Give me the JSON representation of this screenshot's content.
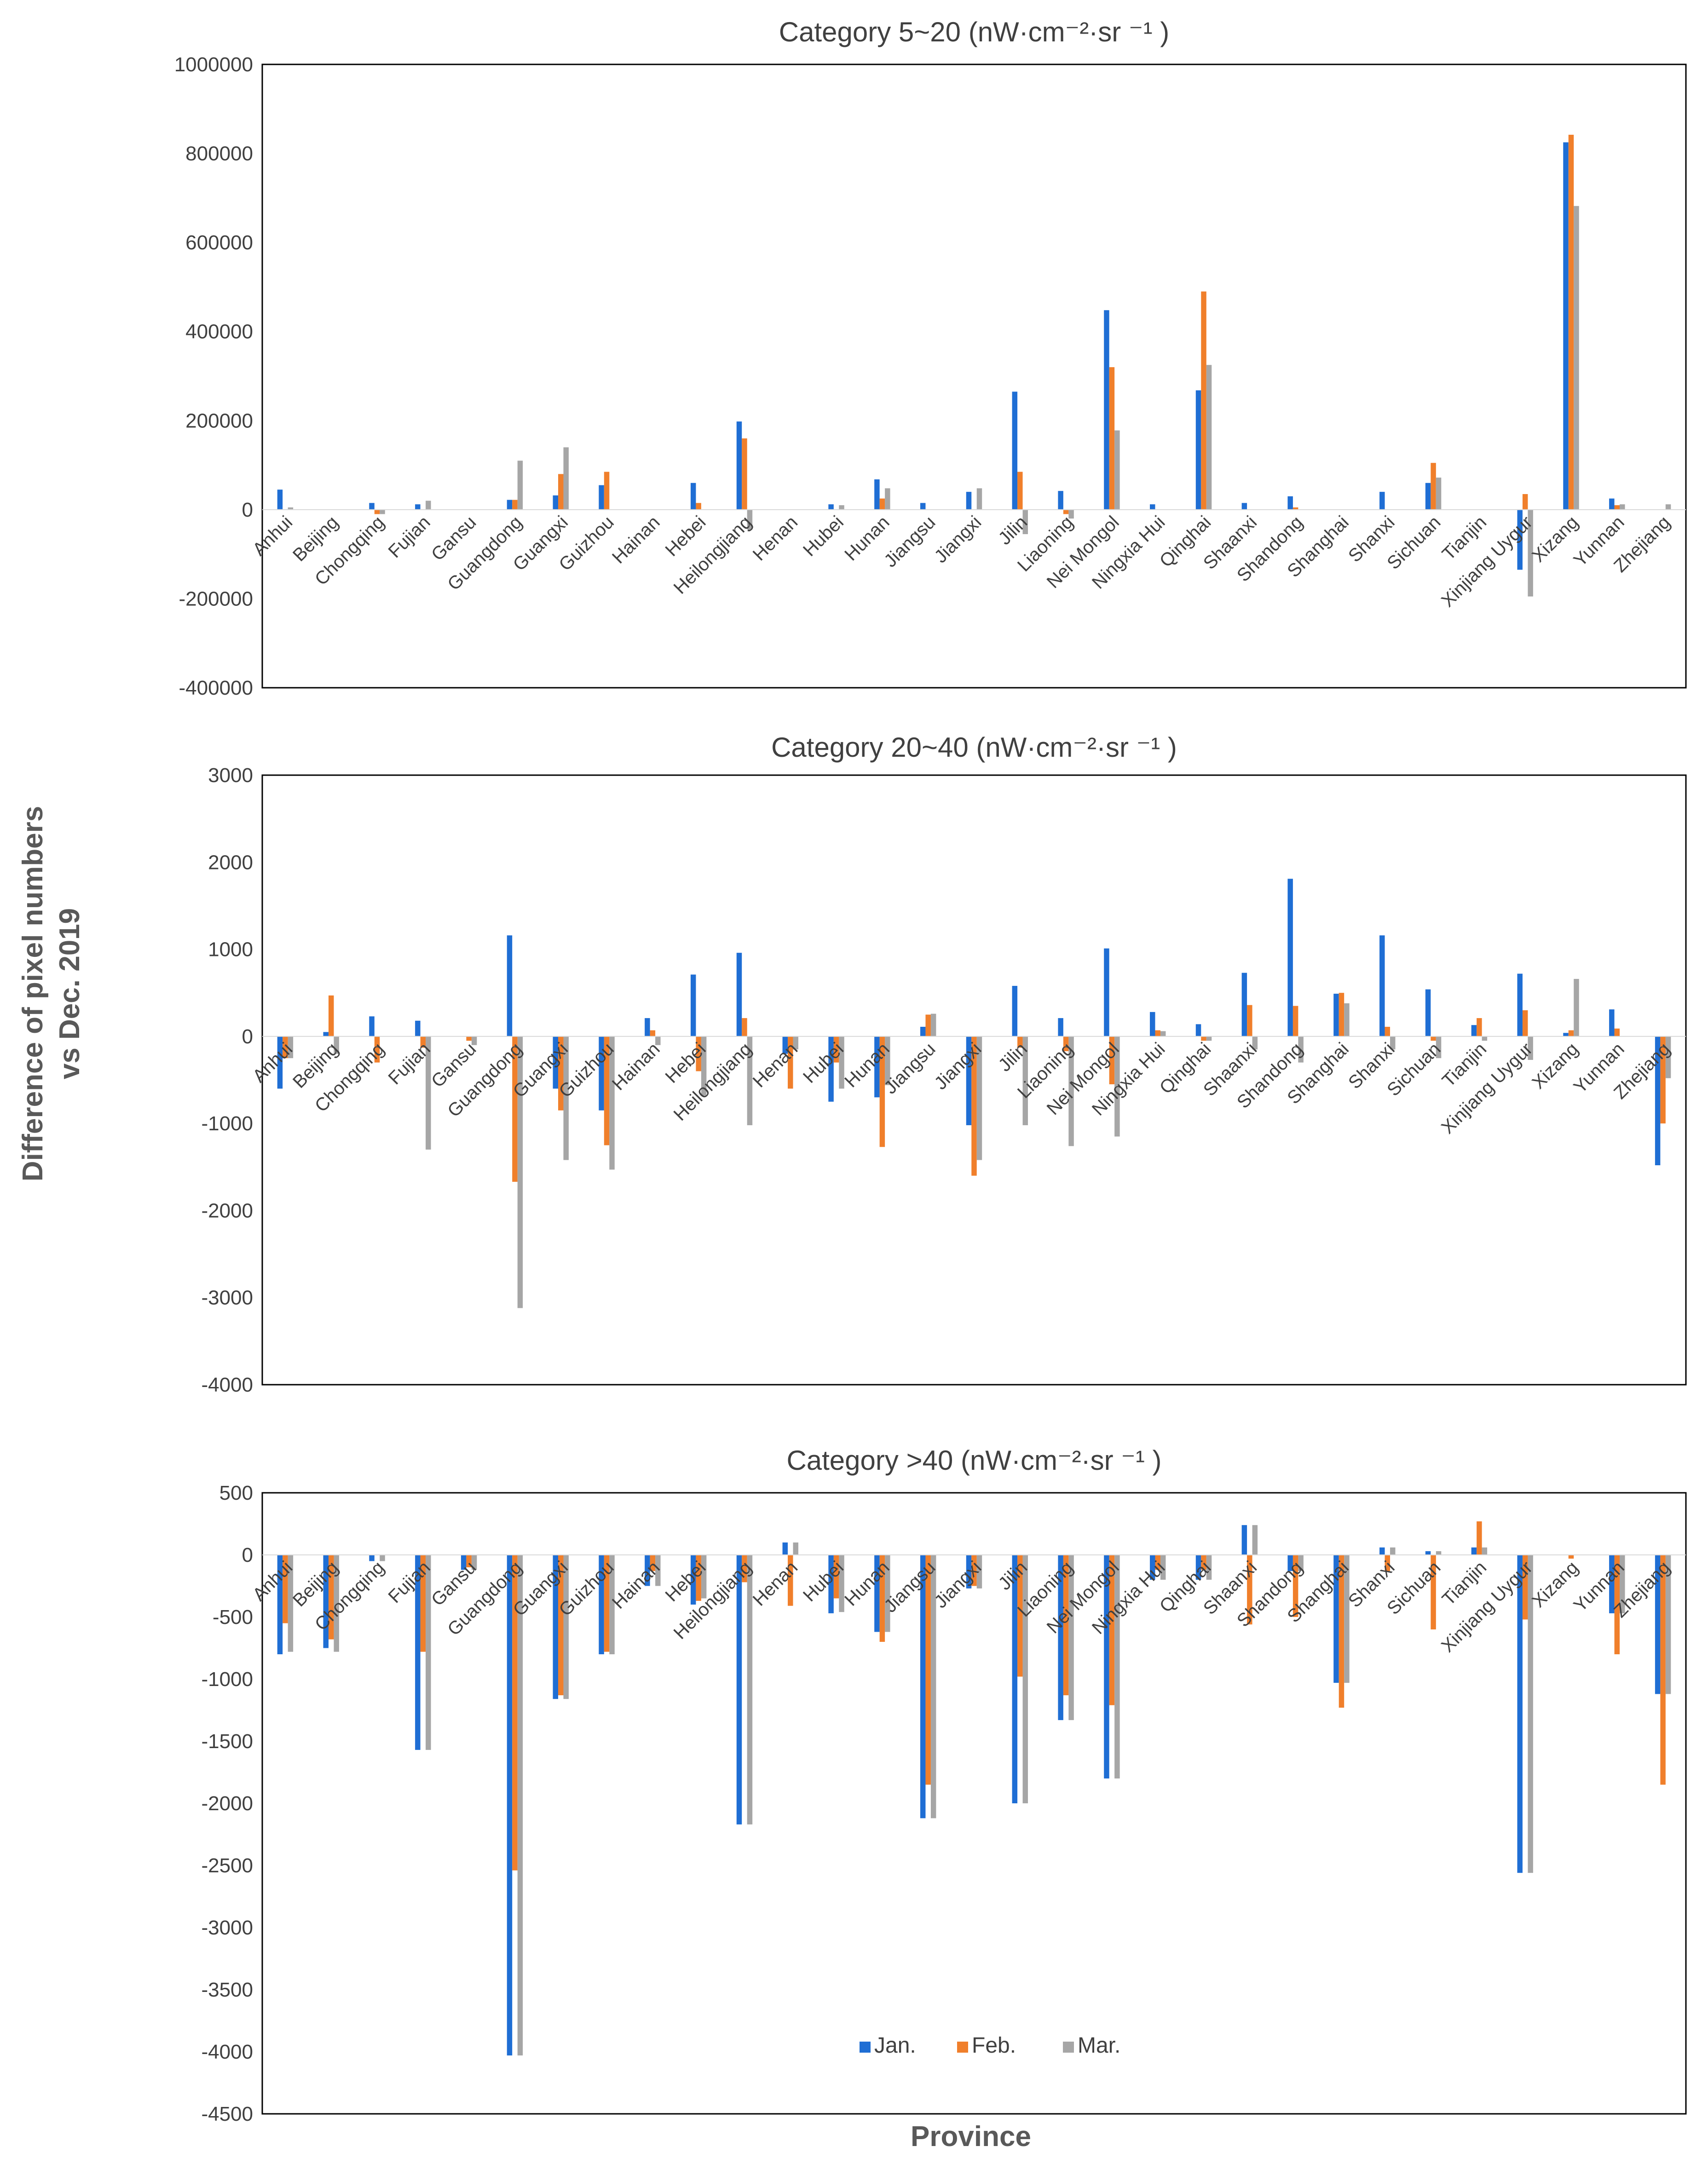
{
  "figure": {
    "ylabel_line1": "Difference of pixel numbers",
    "ylabel_line2": "vs Dec. 2019",
    "xlabel": "Province"
  },
  "legend": {
    "items": [
      {
        "label": "Jan.",
        "color": "#1f6ed4"
      },
      {
        "label": "Feb.",
        "color": "#f07f2b"
      },
      {
        "label": "Mar.",
        "color": "#a6a6a6"
      }
    ]
  },
  "chart_data": [
    {
      "type": "bar",
      "title": "Category 5~20 (nW·cm⁻²·sr ⁻¹ )",
      "ylim": [
        -400000,
        1000000
      ],
      "yticks": [
        -400000,
        -200000,
        0,
        200000,
        400000,
        600000,
        800000,
        1000000
      ],
      "categories": [
        "Anhui",
        "Beijing",
        "Chongqing",
        "Fujian",
        "Gansu",
        "Guangdong",
        "Guangxi",
        "Guizhou",
        "Hainan",
        "Hebei",
        "Heilongjiang",
        "Henan",
        "Hubei",
        "Hunan",
        "Jiangsu",
        "Jiangxi",
        "Jilin",
        "Liaoning",
        "Nei Mongol",
        "Ningxia Hui",
        "Qinghai",
        "Shaanxi",
        "Shandong",
        "Shanghai",
        "Shanxi",
        "Sichuan",
        "Tianjin",
        "Xinjiang Uygur",
        "Xizang",
        "Yunnan",
        "Zhejiang"
      ],
      "series": [
        {
          "name": "Jan.",
          "values": [
            45000,
            0,
            15000,
            12000,
            0,
            22000,
            32000,
            55000,
            0,
            60000,
            198000,
            0,
            12000,
            68000,
            15000,
            40000,
            265000,
            42000,
            448000,
            12000,
            268000,
            15000,
            30000,
            0,
            40000,
            60000,
            0,
            -135000,
            825000,
            25000,
            0
          ]
        },
        {
          "name": "Feb.",
          "values": [
            0,
            0,
            -10000,
            0,
            0,
            22000,
            80000,
            85000,
            0,
            15000,
            160000,
            0,
            0,
            25000,
            0,
            0,
            85000,
            -10000,
            320000,
            0,
            490000,
            0,
            5000,
            0,
            0,
            105000,
            0,
            35000,
            842000,
            10000,
            0
          ]
        },
        {
          "name": "Mar.",
          "values": [
            5000,
            0,
            -10000,
            20000,
            0,
            110000,
            140000,
            0,
            0,
            0,
            -45000,
            0,
            10000,
            48000,
            0,
            48000,
            -55000,
            -20000,
            178000,
            0,
            325000,
            0,
            0,
            0,
            0,
            72000,
            0,
            -195000,
            682000,
            12000,
            12000
          ]
        }
      ]
    },
    {
      "type": "bar",
      "title": "Category 20~40 (nW·cm⁻²·sr ⁻¹ )",
      "ylim": [
        -4000,
        3000
      ],
      "yticks": [
        -4000,
        -3000,
        -2000,
        -1000,
        0,
        1000,
        2000,
        3000
      ],
      "categories": [
        "Anhui",
        "Beijing",
        "Chongqing",
        "Fujian",
        "Gansu",
        "Guangdong",
        "Guangxi",
        "Guizhou",
        "Hainan",
        "Hebei",
        "Heilongjiang",
        "Henan",
        "Hubei",
        "Hunan",
        "Jiangsu",
        "Jiangxi",
        "Jilin",
        "Liaoning",
        "Nei Mongol",
        "Ningxia Hui",
        "Qinghai",
        "Shaanxi",
        "Shandong",
        "Shanghai",
        "Shanxi",
        "Sichuan",
        "Tianjin",
        "Xinjiang Uygur",
        "Xizang",
        "Yunnan",
        "Zhejiang"
      ],
      "series": [
        {
          "name": "Jan.",
          "values": [
            -600,
            50,
            230,
            180,
            0,
            1160,
            -600,
            -850,
            210,
            710,
            960,
            -200,
            -750,
            -700,
            110,
            -1020,
            580,
            210,
            1010,
            280,
            140,
            730,
            1810,
            490,
            1160,
            540,
            130,
            720,
            40,
            310,
            -1480
          ]
        },
        {
          "name": "Feb.",
          "values": [
            -250,
            470,
            -300,
            -130,
            -50,
            -1670,
            -850,
            -1250,
            70,
            -400,
            210,
            -600,
            -300,
            -1270,
            250,
            -1600,
            -130,
            -170,
            -550,
            70,
            -50,
            360,
            350,
            500,
            110,
            -50,
            210,
            300,
            70,
            90,
            -1000
          ]
        },
        {
          "name": "Mar.",
          "values": [
            -250,
            -200,
            0,
            -1300,
            -100,
            -3120,
            -1420,
            -1530,
            -100,
            -680,
            -1020,
            -150,
            -600,
            -560,
            260,
            -1420,
            -1020,
            -1260,
            -1150,
            60,
            -50,
            -150,
            -300,
            380,
            -150,
            -250,
            -50,
            -270,
            660,
            0,
            -480
          ]
        }
      ]
    },
    {
      "type": "bar",
      "title": "Category >40 (nW·cm⁻²·sr ⁻¹ )",
      "ylim": [
        -4500,
        500
      ],
      "yticks": [
        -4500,
        -4000,
        -3500,
        -3000,
        -2500,
        -2000,
        -1500,
        -1000,
        -500,
        0,
        500
      ],
      "categories": [
        "Anhui",
        "Beijing",
        "Chongqing",
        "Fujian",
        "Gansu",
        "Guangdong",
        "Guangxi",
        "Guizhou",
        "Hainan",
        "Hebei",
        "Heilongjiang",
        "Henan",
        "Hubei",
        "Hunan",
        "Jiangsu",
        "Jiangxi",
        "Jilin",
        "Liaoning",
        "Nei Mongol",
        "Ningxia Hui",
        "Qinghai",
        "Shaanxi",
        "Shandong",
        "Shanghai",
        "Shanxi",
        "Sichuan",
        "Tianjin",
        "Xinjiang Uygur",
        "Xizang",
        "Yunnan",
        "Zhejiang"
      ],
      "series": [
        {
          "name": "Jan.",
          "values": [
            -800,
            -750,
            -50,
            -1570,
            -120,
            -4030,
            -1160,
            -800,
            -250,
            -400,
            -2170,
            100,
            -470,
            -620,
            -2120,
            -270,
            -2000,
            -1330,
            -1800,
            -200,
            -200,
            240,
            -130,
            -1030,
            60,
            30,
            60,
            -2560,
            0,
            -470,
            -1120
          ]
        },
        {
          "name": "Feb.",
          "values": [
            -550,
            -680,
            0,
            -780,
            -100,
            -2540,
            -1130,
            -780,
            -130,
            -370,
            -220,
            -410,
            -350,
            -700,
            -1850,
            -250,
            -980,
            -1130,
            -1210,
            -120,
            -120,
            -560,
            -500,
            -1230,
            -130,
            -600,
            270,
            -520,
            -30,
            -800,
            -1850
          ]
        },
        {
          "name": "Mar.",
          "values": [
            -780,
            -780,
            -50,
            -1570,
            -120,
            -4030,
            -1160,
            -800,
            -250,
            -350,
            -2170,
            100,
            -460,
            -620,
            -2120,
            -270,
            -2000,
            -1330,
            -1800,
            -200,
            -200,
            240,
            -130,
            -1030,
            60,
            30,
            60,
            -2560,
            0,
            -470,
            -1120
          ]
        }
      ]
    }
  ]
}
